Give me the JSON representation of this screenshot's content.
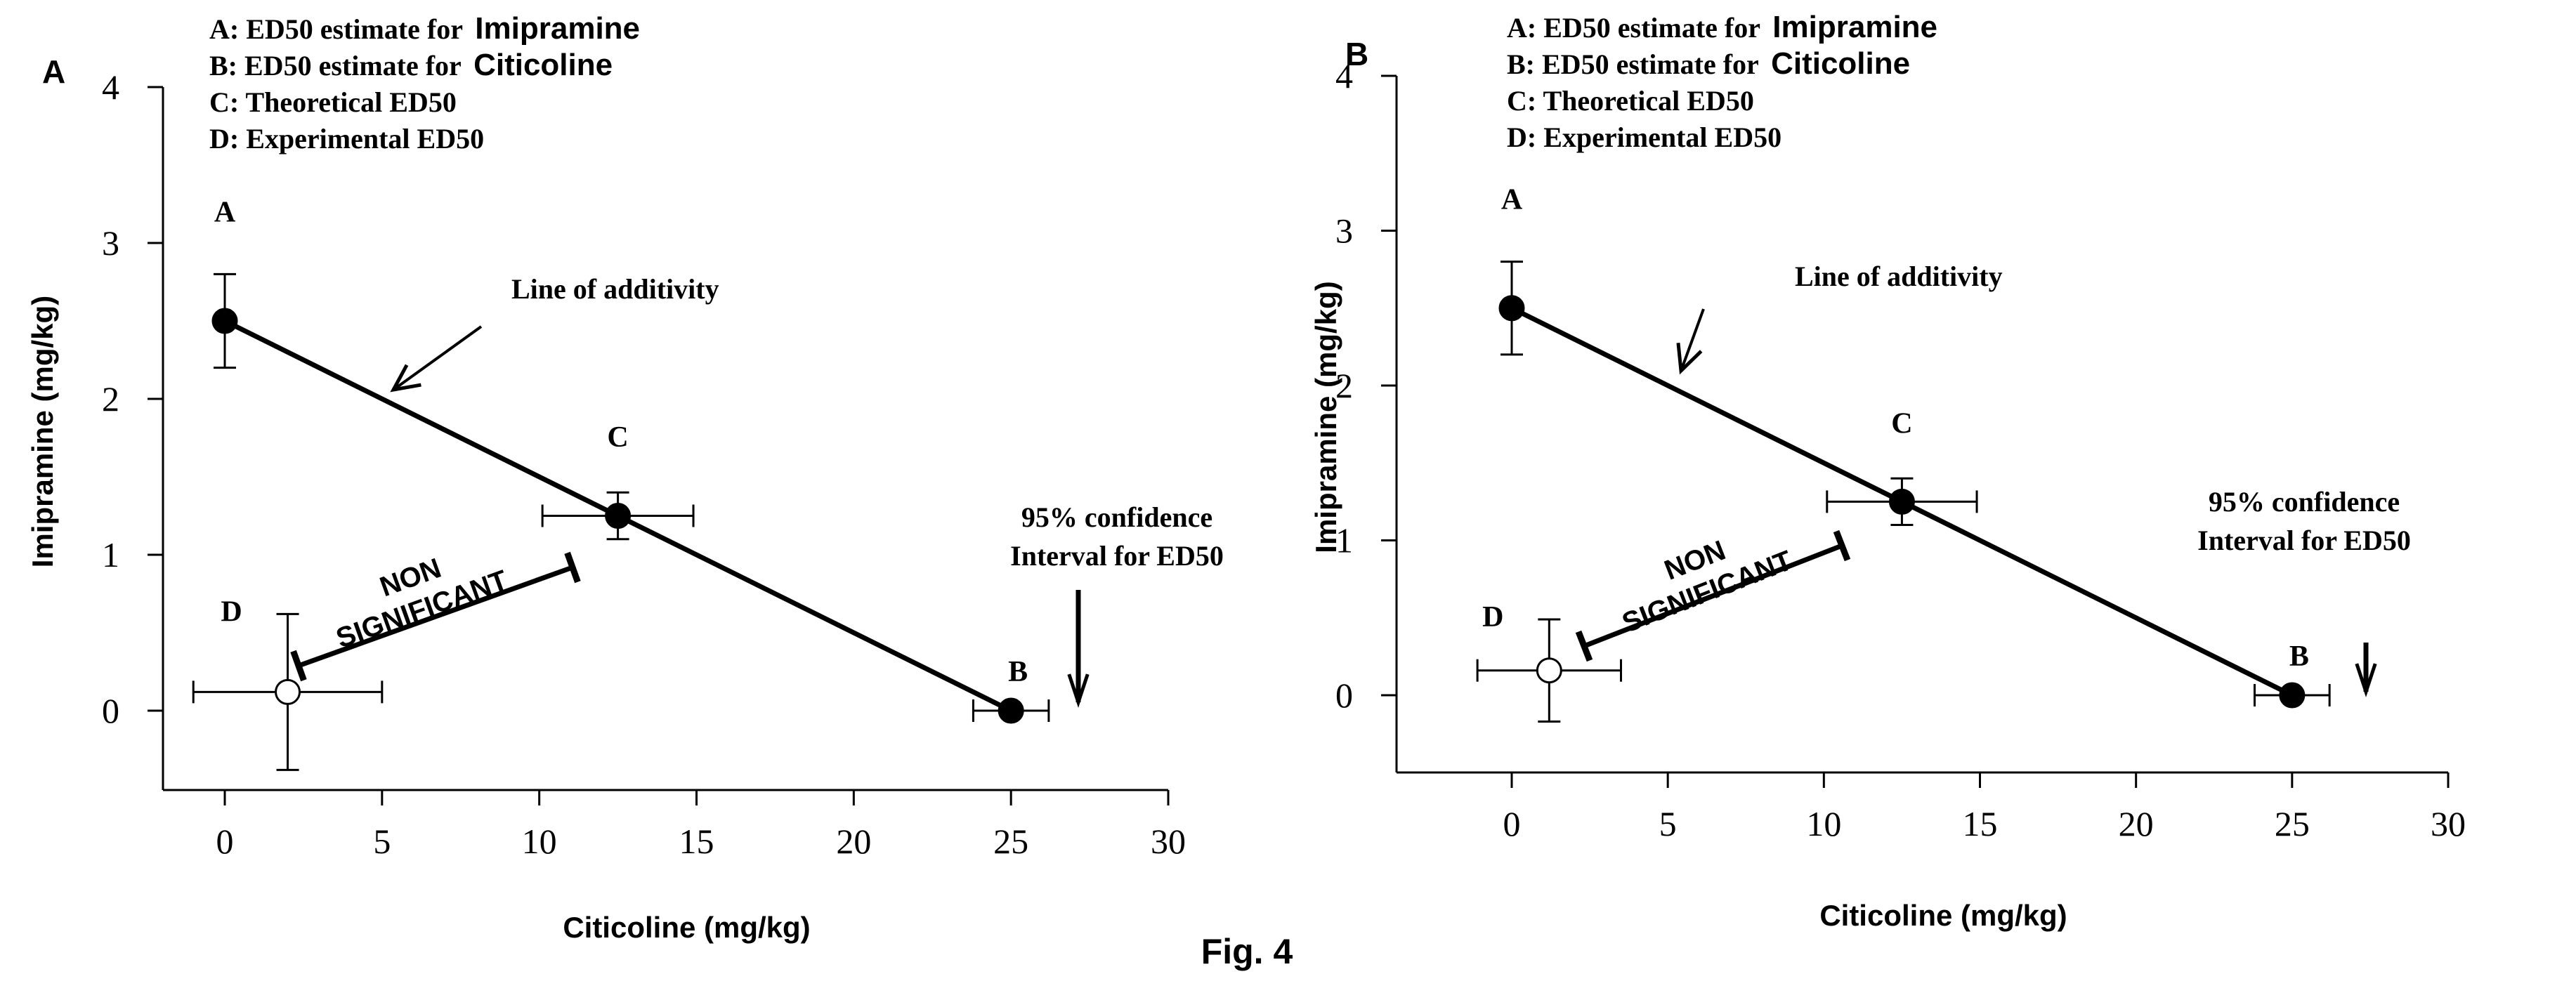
{
  "figure": {
    "caption": "Fig. 4"
  },
  "chart_data": [
    {
      "panel": "A",
      "type": "scatter",
      "xlabel": "Citicoline (mg/kg)",
      "ylabel": "Imipramine (mg/kg)",
      "xlim": [
        -2,
        30
      ],
      "ylim": [
        -0.5,
        4
      ],
      "xticks": [
        0,
        5,
        10,
        15,
        20,
        25,
        30
      ],
      "yticks": [
        0,
        1,
        2,
        3,
        4
      ],
      "legend": [
        {
          "prefix": "A: ED50 estimate for ",
          "suffix": "Imipramine"
        },
        {
          "prefix": "B: ED50 estimate for ",
          "suffix": "Citicoline"
        },
        {
          "prefix": "C: Theoretical ED50",
          "suffix": ""
        },
        {
          "prefix": "D: Experimental ED50",
          "suffix": ""
        }
      ],
      "additivity_line": {
        "from": [
          0,
          2.5
        ],
        "to": [
          25,
          0
        ]
      },
      "points": [
        {
          "label": "A",
          "x": 0,
          "y": 2.5,
          "xerr": 0,
          "yerr": 0.3,
          "filled": true
        },
        {
          "label": "C",
          "x": 12.5,
          "y": 1.25,
          "xerr": 2.4,
          "yerr": 0.15,
          "filled": true
        },
        {
          "label": "B",
          "x": 25,
          "y": 0,
          "xerr": 1.2,
          "yerr": 0,
          "filled": true
        },
        {
          "label": "D",
          "x": 2,
          "y": 0.12,
          "xerr": 3,
          "yerr": 0.5,
          "filled": false
        }
      ],
      "annotations": {
        "line_label": "Line of additivity",
        "ci_label_line1": "95% confidence",
        "ci_label_line2": "Interval for ED50",
        "ns_line1": "NON",
        "ns_line2": "SIGNIFICANT"
      }
    },
    {
      "panel": "B",
      "type": "scatter",
      "xlabel": "Citicoline (mg/kg)",
      "ylabel": "Imipramine (mg/kg)",
      "xlim": [
        -2,
        30
      ],
      "ylim": [
        -0.5,
        4
      ],
      "xticks": [
        0,
        5,
        10,
        15,
        20,
        25,
        30
      ],
      "yticks": [
        0,
        1,
        2,
        3,
        4
      ],
      "legend": [
        {
          "prefix": "A: ED50 estimate for ",
          "suffix": "Imipramine"
        },
        {
          "prefix": "B: ED50 estimate for ",
          "suffix": "Citicoline"
        },
        {
          "prefix": "C: Theoretical ED50",
          "suffix": ""
        },
        {
          "prefix": "D: Experimental ED50",
          "suffix": ""
        }
      ],
      "additivity_line": {
        "from": [
          0,
          2.5
        ],
        "to": [
          25,
          0
        ]
      },
      "points": [
        {
          "label": "A",
          "x": 0,
          "y": 2.5,
          "xerr": 0,
          "yerr": 0.3,
          "filled": true
        },
        {
          "label": "C",
          "x": 12.5,
          "y": 1.25,
          "xerr": 2.4,
          "yerr": 0.15,
          "filled": true
        },
        {
          "label": "B",
          "x": 25,
          "y": 0,
          "xerr": 1.2,
          "yerr": 0,
          "filled": true
        },
        {
          "label": "D",
          "x": 1.2,
          "y": 0.16,
          "xerr": 2.3,
          "yerr": 0.33,
          "filled": false
        }
      ],
      "annotations": {
        "line_label": "Line of additivity",
        "ci_label_line1": "95% confidence",
        "ci_label_line2": "Interval for ED50",
        "ns_line1": "NON",
        "ns_line2": "SIGNIFICANT"
      }
    }
  ]
}
